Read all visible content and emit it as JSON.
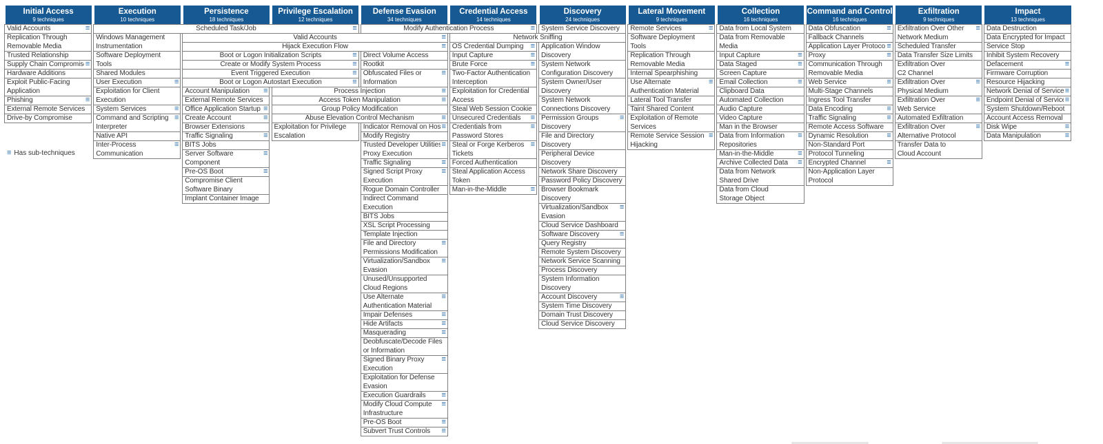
{
  "colors": {
    "header_bg": "#175993",
    "icon_blue": "#2e6fae",
    "text": "#333333",
    "cell_border": "#7e7e7e"
  },
  "legend": {
    "icon": "≡",
    "label": "Has sub-techniques"
  },
  "tactics": [
    {
      "name": "Initial Access",
      "count": "9 techniques"
    },
    {
      "name": "Execution",
      "count": "10 techniques"
    },
    {
      "name": "Persistence",
      "count": "18 techniques"
    },
    {
      "name": "Privilege Escalation",
      "count": "12 techniques"
    },
    {
      "name": "Defense Evasion",
      "count": "34 techniques"
    },
    {
      "name": "Credential Access",
      "count": "14 techniques"
    },
    {
      "name": "Discovery",
      "count": "24 techniques"
    },
    {
      "name": "Lateral Movement",
      "count": "9 techniques"
    },
    {
      "name": "Collection",
      "count": "16 techniques"
    },
    {
      "name": "Command and Control",
      "count": "16 techniques"
    },
    {
      "name": "Exfiltration",
      "count": "9 techniques"
    },
    {
      "name": "Impact",
      "count": "13 techniques"
    }
  ],
  "cells": [
    {
      "label": "Valid Accounts",
      "col": 1,
      "row": 1,
      "sub": true
    },
    {
      "label": "Replication Through\nRemovable Media",
      "col": 1,
      "row": 2,
      "lines": 2
    },
    {
      "label": "Trusted Relationship",
      "col": 1,
      "row": 4
    },
    {
      "label": "Supply Chain Compromise",
      "col": 1,
      "row": 5,
      "sub": true
    },
    {
      "label": "Hardware Additions",
      "col": 1,
      "row": 6
    },
    {
      "label": "Exploit Public-Facing\nApplication",
      "col": 1,
      "row": 7,
      "lines": 2
    },
    {
      "label": "Phishing",
      "col": 1,
      "row": 9,
      "sub": true
    },
    {
      "label": "External Remote Services",
      "col": 1,
      "row": 10
    },
    {
      "label": "Drive-by Compromise",
      "col": 1,
      "row": 11
    },
    {
      "label": "Scheduled Task/Job",
      "col": 2,
      "row": 1,
      "span": 3,
      "center": true,
      "sub": true
    },
    {
      "label": "Windows Management\nInstrumentation",
      "col": 2,
      "row": 2,
      "lines": 2
    },
    {
      "label": "Software Deployment\nTools",
      "col": 2,
      "row": 4,
      "lines": 2
    },
    {
      "label": "Shared Modules",
      "col": 2,
      "row": 6
    },
    {
      "label": "User Execution",
      "col": 2,
      "row": 7,
      "sub": true
    },
    {
      "label": "Exploitation for Client\nExecution",
      "col": 2,
      "row": 8,
      "lines": 2
    },
    {
      "label": "System Services",
      "col": 2,
      "row": 10,
      "sub": true
    },
    {
      "label": "Command and Scripting\nInterpreter",
      "col": 2,
      "row": 11,
      "lines": 2,
      "sub": true
    },
    {
      "label": "Native API",
      "col": 2,
      "row": 13
    },
    {
      "label": "Inter-Process\nCommunication",
      "col": 2,
      "row": 14,
      "lines": 2,
      "sub": true
    },
    {
      "label": "Valid Accounts",
      "col": 3,
      "row": 2,
      "span": 3,
      "center": true,
      "sub": true
    },
    {
      "label": "Hijack Execution Flow",
      "col": 3,
      "row": 3,
      "span": 3,
      "center": true,
      "sub": true
    },
    {
      "label": "Boot or Logon Initialization Scripts",
      "col": 3,
      "row": 4,
      "span": 2,
      "center": true,
      "sub": true
    },
    {
      "label": "Create or Modify System Process",
      "col": 3,
      "row": 5,
      "span": 2,
      "center": true,
      "sub": true
    },
    {
      "label": "Event Triggered Execution",
      "col": 3,
      "row": 6,
      "span": 2,
      "center": true,
      "sub": true
    },
    {
      "label": "Boot or Logon Autostart Execution",
      "col": 3,
      "row": 7,
      "span": 2,
      "center": true,
      "sub": true
    },
    {
      "label": "Account Manipulation",
      "col": 3,
      "row": 8,
      "sub": true
    },
    {
      "label": "External Remote Services",
      "col": 3,
      "row": 9
    },
    {
      "label": "Office Application Startup",
      "col": 3,
      "row": 10,
      "sub": true
    },
    {
      "label": "Create Account",
      "col": 3,
      "row": 11,
      "sub": true
    },
    {
      "label": "Browser Extensions",
      "col": 3,
      "row": 12
    },
    {
      "label": "Traffic Signaling",
      "col": 3,
      "row": 13,
      "sub": true
    },
    {
      "label": "BITS Jobs",
      "col": 3,
      "row": 14
    },
    {
      "label": "Server Software\nComponent",
      "col": 3,
      "row": 15,
      "lines": 2,
      "sub": true
    },
    {
      "label": "Pre-OS Boot",
      "col": 3,
      "row": 17,
      "sub": true
    },
    {
      "label": "Compromise Client\nSoftware Binary",
      "col": 3,
      "row": 18,
      "lines": 2
    },
    {
      "label": "Implant Container Image",
      "col": 3,
      "row": 20
    },
    {
      "label": "Process Injection",
      "col": 4,
      "row": 8,
      "span": 2,
      "center": true,
      "sub": true
    },
    {
      "label": "Access Token Manipulation",
      "col": 4,
      "row": 9,
      "span": 2,
      "center": true,
      "sub": true
    },
    {
      "label": "Group Policy Modification",
      "col": 4,
      "row": 10,
      "span": 2,
      "center": true
    },
    {
      "label": "Abuse Elevation Control Mechanism",
      "col": 4,
      "row": 11,
      "span": 2,
      "center": true,
      "sub": true
    },
    {
      "label": "Exploitation for Privilege\nEscalation",
      "col": 4,
      "row": 12,
      "lines": 2
    },
    {
      "label": "Modify Authentication Process",
      "col": 5,
      "row": 1,
      "span": 2,
      "center": true,
      "sub": true
    },
    {
      "label": "Direct Volume Access",
      "col": 5,
      "row": 4
    },
    {
      "label": "Rootkit",
      "col": 5,
      "row": 5
    },
    {
      "label": "Obfuscated Files or\nInformation",
      "col": 5,
      "row": 6,
      "lines": 2,
      "sub": true
    },
    {
      "label": "Indicator Removal on Host",
      "col": 5,
      "row": 12,
      "sub": true
    },
    {
      "label": "Modify Registry",
      "col": 5,
      "row": 13
    },
    {
      "label": "Trusted Developer Utilities\nProxy Execution",
      "col": 5,
      "row": 14,
      "lines": 2,
      "sub": true
    },
    {
      "label": "Traffic Signaling",
      "col": 5,
      "row": 16,
      "sub": true
    },
    {
      "label": "Signed Script Proxy\nExecution",
      "col": 5,
      "row": 17,
      "lines": 2,
      "sub": true
    },
    {
      "label": "Rogue Domain Controller",
      "col": 5,
      "row": 19
    },
    {
      "label": "Indirect Command\nExecution",
      "col": 5,
      "row": 20,
      "lines": 2
    },
    {
      "label": "BITS Jobs",
      "col": 5,
      "row": 22
    },
    {
      "label": "XSL Script Processing",
      "col": 5,
      "row": 23
    },
    {
      "label": "Template Injection",
      "col": 5,
      "row": 24
    },
    {
      "label": "File and Directory\nPermissions Modification",
      "col": 5,
      "row": 25,
      "lines": 2,
      "sub": true
    },
    {
      "label": "Virtualization/Sandbox\nEvasion",
      "col": 5,
      "row": 27,
      "lines": 2,
      "sub": true
    },
    {
      "label": "Unused/Unsupported\nCloud Regions",
      "col": 5,
      "row": 29,
      "lines": 2
    },
    {
      "label": "Use Alternate\nAuthentication Material",
      "col": 5,
      "row": 31,
      "lines": 2,
      "sub": true
    },
    {
      "label": "Impair Defenses",
      "col": 5,
      "row": 33,
      "sub": true
    },
    {
      "label": "Hide Artifacts",
      "col": 5,
      "row": 34,
      "sub": true
    },
    {
      "label": "Masquerading",
      "col": 5,
      "row": 35,
      "sub": true
    },
    {
      "label": "Deobfuscate/Decode Files\nor Information",
      "col": 5,
      "row": 36,
      "lines": 2
    },
    {
      "label": "Signed Binary Proxy\nExecution",
      "col": 5,
      "row": 38,
      "lines": 2,
      "sub": true
    },
    {
      "label": "Exploitation for Defense\nEvasion",
      "col": 5,
      "row": 40,
      "lines": 2
    },
    {
      "label": "Execution Guardrails",
      "col": 5,
      "row": 42,
      "sub": true
    },
    {
      "label": "Modify Cloud Compute\nInfrastructure",
      "col": 5,
      "row": 43,
      "lines": 2,
      "sub": true
    },
    {
      "label": "Pre-OS Boot",
      "col": 5,
      "row": 45,
      "sub": true
    },
    {
      "label": "Subvert Trust Controls",
      "col": 5,
      "row": 46,
      "sub": true
    },
    {
      "label": "Network Sniffing",
      "col": 6,
      "row": 2,
      "span": 2,
      "center": true
    },
    {
      "label": "OS Credential Dumping",
      "col": 6,
      "row": 3,
      "sub": true
    },
    {
      "label": "Input Capture",
      "col": 6,
      "row": 4,
      "sub": true
    },
    {
      "label": "Brute Force",
      "col": 6,
      "row": 5,
      "sub": true
    },
    {
      "label": "Two-Factor Authentication\nInterception",
      "col": 6,
      "row": 6,
      "lines": 2
    },
    {
      "label": "Exploitation for Credential\nAccess",
      "col": 6,
      "row": 8,
      "lines": 2
    },
    {
      "label": "Steal Web Session Cookie",
      "col": 6,
      "row": 10
    },
    {
      "label": "Unsecured Credentials",
      "col": 6,
      "row": 11,
      "sub": true
    },
    {
      "label": "Credentials from\nPassword Stores",
      "col": 6,
      "row": 12,
      "lines": 2,
      "sub": true
    },
    {
      "label": "Steal or Forge Kerberos\nTickets",
      "col": 6,
      "row": 14,
      "lines": 2,
      "sub": true
    },
    {
      "label": "Forced Authentication",
      "col": 6,
      "row": 16
    },
    {
      "label": "Steal Application Access\nToken",
      "col": 6,
      "row": 17,
      "lines": 2
    },
    {
      "label": "Man-in-the-Middle",
      "col": 6,
      "row": 19,
      "sub": true
    },
    {
      "label": "System Service Discovery",
      "col": 7,
      "row": 1
    },
    {
      "label": "Application Window\nDiscovery",
      "col": 7,
      "row": 3,
      "lines": 2
    },
    {
      "label": "System Network\nConfiguration Discovery",
      "col": 7,
      "row": 5,
      "lines": 2
    },
    {
      "label": "System Owner/User\nDiscovery",
      "col": 7,
      "row": 7,
      "lines": 2
    },
    {
      "label": "System Network\nConnections Discovery",
      "col": 7,
      "row": 9,
      "lines": 2
    },
    {
      "label": "Permission Groups\nDiscovery",
      "col": 7,
      "row": 11,
      "lines": 2,
      "sub": true
    },
    {
      "label": "File and Directory\nDiscovery",
      "col": 7,
      "row": 13,
      "lines": 2
    },
    {
      "label": "Peripheral Device\nDiscovery",
      "col": 7,
      "row": 15,
      "lines": 2
    },
    {
      "label": "Network Share Discovery",
      "col": 7,
      "row": 17
    },
    {
      "label": "Password Policy Discovery",
      "col": 7,
      "row": 18
    },
    {
      "label": "Browser Bookmark\nDiscovery",
      "col": 7,
      "row": 19,
      "lines": 2
    },
    {
      "label": "Virtualization/Sandbox\nEvasion",
      "col": 7,
      "row": 21,
      "lines": 2,
      "sub": true
    },
    {
      "label": "Cloud Service Dashboard",
      "col": 7,
      "row": 23
    },
    {
      "label": "Software Discovery",
      "col": 7,
      "row": 24,
      "sub": true
    },
    {
      "label": "Query Registry",
      "col": 7,
      "row": 25
    },
    {
      "label": "Remote System Discovery",
      "col": 7,
      "row": 26
    },
    {
      "label": "Network Service Scanning",
      "col": 7,
      "row": 27
    },
    {
      "label": "Process Discovery",
      "col": 7,
      "row": 28
    },
    {
      "label": "System Information\nDiscovery",
      "col": 7,
      "row": 29,
      "lines": 2
    },
    {
      "label": "Account Discovery",
      "col": 7,
      "row": 31,
      "sub": true
    },
    {
      "label": "System Time Discovery",
      "col": 7,
      "row": 32
    },
    {
      "label": "Domain Trust Discovery",
      "col": 7,
      "row": 33
    },
    {
      "label": "Cloud Service Discovery",
      "col": 7,
      "row": 34
    },
    {
      "label": "Remote Services",
      "col": 8,
      "row": 1,
      "sub": true
    },
    {
      "label": "Software Deployment\nTools",
      "col": 8,
      "row": 2,
      "lines": 2
    },
    {
      "label": "Replication Through\nRemovable Media",
      "col": 8,
      "row": 4,
      "lines": 2
    },
    {
      "label": "Internal Spearphishing",
      "col": 8,
      "row": 6
    },
    {
      "label": "Use Alternate\nAuthentication Material",
      "col": 8,
      "row": 7,
      "lines": 2,
      "sub": true
    },
    {
      "label": "Lateral Tool Transfer",
      "col": 8,
      "row": 9
    },
    {
      "label": "Taint Shared Content",
      "col": 8,
      "row": 10
    },
    {
      "label": "Exploitation of Remote\nServices",
      "col": 8,
      "row": 11,
      "lines": 2
    },
    {
      "label": "Remote Service Session\nHijacking",
      "col": 8,
      "row": 13,
      "lines": 2,
      "sub": true
    },
    {
      "label": "Data from Local System",
      "col": 9,
      "row": 1
    },
    {
      "label": "Data from Removable\nMedia",
      "col": 9,
      "row": 2,
      "lines": 2
    },
    {
      "label": "Input Capture",
      "col": 9,
      "row": 4,
      "sub": true
    },
    {
      "label": "Data Staged",
      "col": 9,
      "row": 5,
      "sub": true
    },
    {
      "label": "Screen Capture",
      "col": 9,
      "row": 6
    },
    {
      "label": "Email Collection",
      "col": 9,
      "row": 7,
      "sub": true
    },
    {
      "label": "Clipboard Data",
      "col": 9,
      "row": 8
    },
    {
      "label": "Automated Collection",
      "col": 9,
      "row": 9
    },
    {
      "label": "Audio Capture",
      "col": 9,
      "row": 10
    },
    {
      "label": "Video Capture",
      "col": 9,
      "row": 11
    },
    {
      "label": "Man in the Browser",
      "col": 9,
      "row": 12
    },
    {
      "label": "Data from Information\nRepositories",
      "col": 9,
      "row": 13,
      "lines": 2,
      "sub": true
    },
    {
      "label": "Man-in-the-Middle",
      "col": 9,
      "row": 15,
      "sub": true
    },
    {
      "label": "Archive Collected Data",
      "col": 9,
      "row": 16,
      "sub": true
    },
    {
      "label": "Data from Network\nShared Drive",
      "col": 9,
      "row": 17,
      "lines": 2
    },
    {
      "label": "Data from Cloud\nStorage Object",
      "col": 9,
      "row": 19,
      "lines": 2
    },
    {
      "label": "Data Obfuscation",
      "col": 10,
      "row": 1,
      "sub": true
    },
    {
      "label": "Fallback Channels",
      "col": 10,
      "row": 2
    },
    {
      "label": "Application Layer Protocol",
      "col": 10,
      "row": 3,
      "sub": true
    },
    {
      "label": "Proxy",
      "col": 10,
      "row": 4,
      "sub": true
    },
    {
      "label": "Communication Through\nRemovable Media",
      "col": 10,
      "row": 5,
      "lines": 2
    },
    {
      "label": "Web Service",
      "col": 10,
      "row": 7,
      "sub": true
    },
    {
      "label": "Multi-Stage Channels",
      "col": 10,
      "row": 8
    },
    {
      "label": "Ingress Tool Transfer",
      "col": 10,
      "row": 9
    },
    {
      "label": "Data Encoding",
      "col": 10,
      "row": 10,
      "sub": true
    },
    {
      "label": "Traffic Signaling",
      "col": 10,
      "row": 11,
      "sub": true
    },
    {
      "label": "Remote Access Software",
      "col": 10,
      "row": 12
    },
    {
      "label": "Dynamic Resolution",
      "col": 10,
      "row": 13,
      "sub": true
    },
    {
      "label": "Non-Standard Port",
      "col": 10,
      "row": 14
    },
    {
      "label": "Protocol Tunneling",
      "col": 10,
      "row": 15
    },
    {
      "label": "Encrypted Channel",
      "col": 10,
      "row": 16,
      "sub": true
    },
    {
      "label": "Non-Application Layer\nProtocol",
      "col": 10,
      "row": 17,
      "lines": 2
    },
    {
      "label": "Exfiltration Over Other\nNetwork Medium",
      "col": 11,
      "row": 1,
      "lines": 2,
      "sub": true
    },
    {
      "label": "Scheduled Transfer",
      "col": 11,
      "row": 3
    },
    {
      "label": "Data Transfer Size Limits",
      "col": 11,
      "row": 4
    },
    {
      "label": "Exfiltration Over\nC2 Channel",
      "col": 11,
      "row": 5,
      "lines": 2
    },
    {
      "label": "Exfiltration Over\nPhysical Medium",
      "col": 11,
      "row": 7,
      "lines": 2,
      "sub": true
    },
    {
      "label": "Exfiltration Over\nWeb Service",
      "col": 11,
      "row": 9,
      "lines": 2,
      "sub": true
    },
    {
      "label": "Automated Exfiltration",
      "col": 11,
      "row": 11
    },
    {
      "label": "Exfiltration Over\nAlternative Protocol",
      "col": 11,
      "row": 12,
      "lines": 2,
      "sub": true
    },
    {
      "label": "Transfer Data to\nCloud Account",
      "col": 11,
      "row": 14,
      "lines": 2
    },
    {
      "label": "Data Destruction",
      "col": 12,
      "row": 1
    },
    {
      "label": "Data Encrypted for Impact",
      "col": 12,
      "row": 2
    },
    {
      "label": "Service Stop",
      "col": 12,
      "row": 3
    },
    {
      "label": "Inhibit System Recovery",
      "col": 12,
      "row": 4
    },
    {
      "label": "Defacement",
      "col": 12,
      "row": 5,
      "sub": true
    },
    {
      "label": "Firmware Corruption",
      "col": 12,
      "row": 6
    },
    {
      "label": "Resource Hijacking",
      "col": 12,
      "row": 7
    },
    {
      "label": "Network Denial of Service",
      "col": 12,
      "row": 8,
      "sub": true
    },
    {
      "label": "Endpoint Denial of Service",
      "col": 12,
      "row": 9,
      "sub": true
    },
    {
      "label": "System Shutdown/Reboot",
      "col": 12,
      "row": 10
    },
    {
      "label": "Account Access Removal",
      "col": 12,
      "row": 11
    },
    {
      "label": "Disk Wipe",
      "col": 12,
      "row": 12,
      "sub": true
    },
    {
      "label": "Data Manipulation",
      "col": 12,
      "row": 13,
      "sub": true
    }
  ]
}
